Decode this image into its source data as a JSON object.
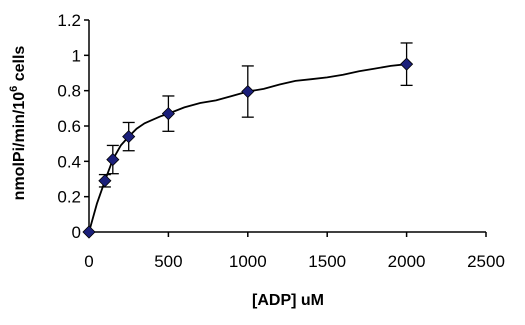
{
  "chart_data": {
    "type": "scatter",
    "title": "",
    "xlabel": "[ADP] uM",
    "ylabel_prefix": "nmolPi/min/10",
    "ylabel_superscript": "6",
    "ylabel_suffix": " cells",
    "xlim": [
      0,
      2500
    ],
    "ylim": [
      0,
      1.2
    ],
    "x_ticks": [
      "0",
      "500",
      "1000",
      "1500",
      "2000",
      "2500"
    ],
    "y_ticks": [
      "0",
      "0.2",
      "0.4",
      "0.6",
      "0.8",
      "1",
      "1.2"
    ],
    "grid": false,
    "legend": "none",
    "series": [
      {
        "marker": "diamond",
        "color": "#1b1f7a",
        "points": [
          {
            "x": 0,
            "y": 0,
            "err": 0
          },
          {
            "x": 100,
            "y": 0.29,
            "err": 0.035
          },
          {
            "x": 150,
            "y": 0.41,
            "err": 0.08
          },
          {
            "x": 250,
            "y": 0.54,
            "err": 0.08
          },
          {
            "x": 500,
            "y": 0.67,
            "err": 0.1
          },
          {
            "x": 1000,
            "y": 0.795,
            "err": 0.145
          },
          {
            "x": 2000,
            "y": 0.95,
            "err": 0.12
          }
        ],
        "fit_curve": {
          "x": [
            0,
            50,
            100,
            150,
            200,
            250,
            300,
            350,
            400,
            450,
            500,
            600,
            700,
            800,
            900,
            1000,
            1100,
            1200,
            1300,
            1400,
            1500,
            1600,
            1700,
            1800,
            1900,
            2000
          ],
          "y": [
            0,
            0.16,
            0.29,
            0.41,
            0.49,
            0.54,
            0.585,
            0.615,
            0.635,
            0.655,
            0.67,
            0.705,
            0.73,
            0.745,
            0.77,
            0.795,
            0.81,
            0.835,
            0.855,
            0.865,
            0.875,
            0.89,
            0.91,
            0.925,
            0.94,
            0.95
          ]
        }
      }
    ]
  }
}
